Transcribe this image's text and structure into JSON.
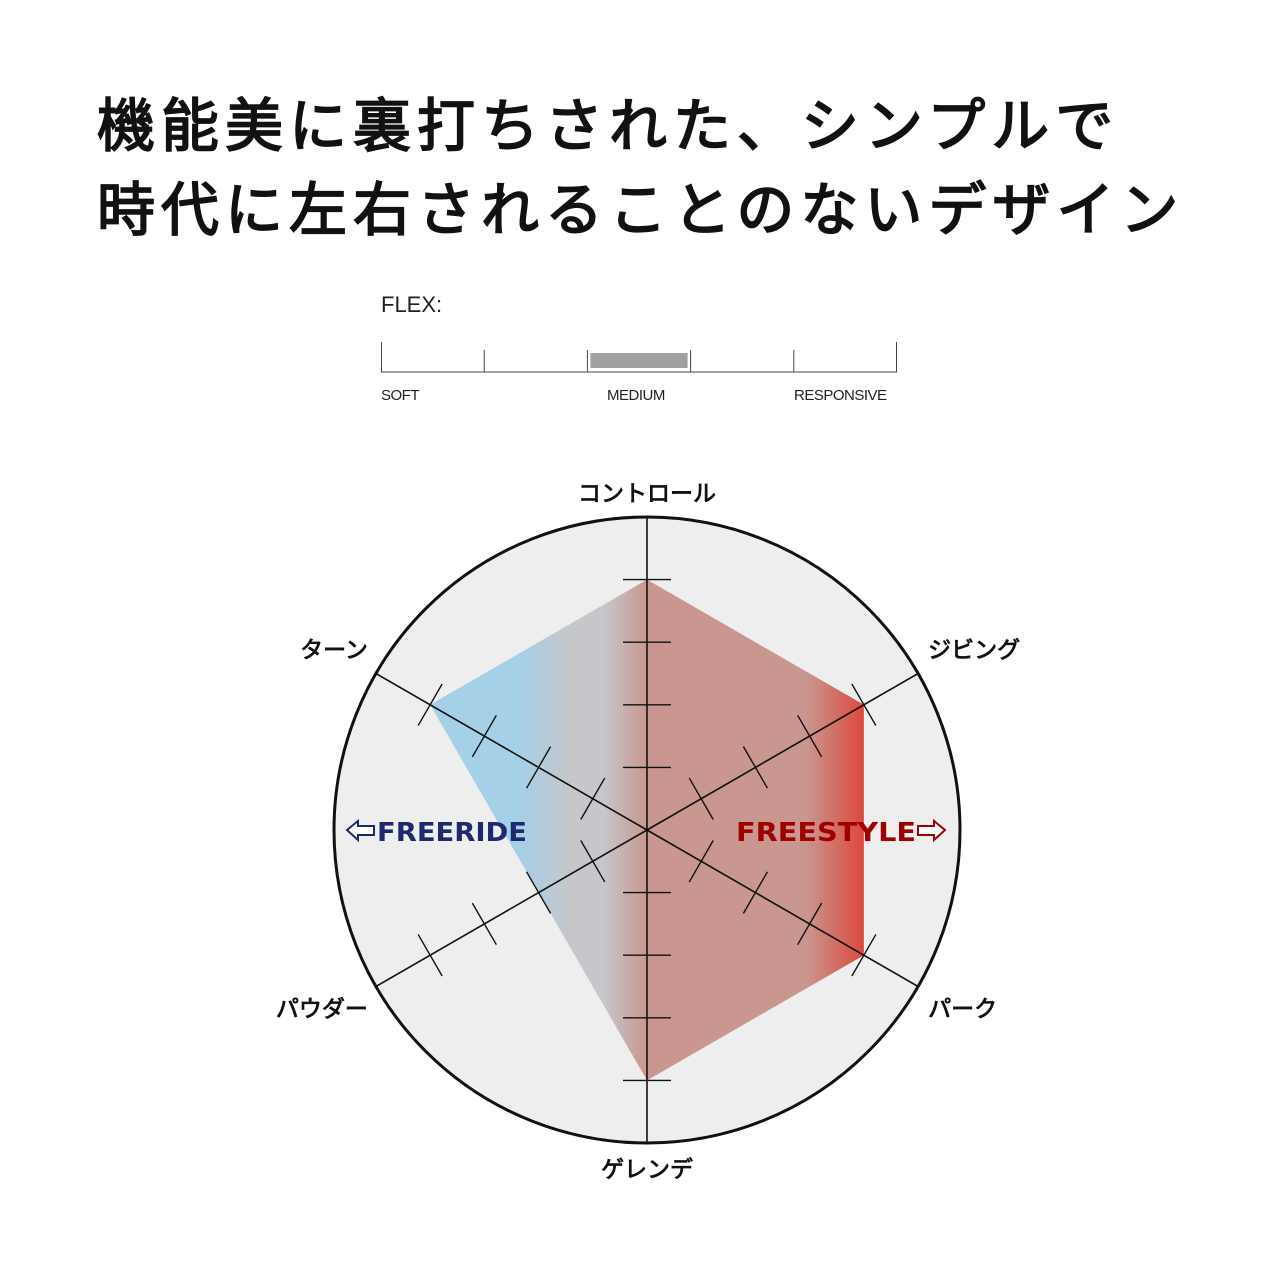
{
  "headline": {
    "line1": "機能美に裏打ちされた、シンプルで",
    "line2": "時代に左右されることのないデザイン"
  },
  "flex": {
    "label": "FLEX:",
    "segments": 5,
    "selected_segment": 3,
    "tick_labels": [
      "SOFT",
      "MEDIUM",
      "RESPONSIVE"
    ],
    "bar_color": "#a0a0a0"
  },
  "chart_data": {
    "type": "radar",
    "axes": [
      "コントロール",
      "ジビング",
      "パーク",
      "ゲレンデ",
      "パウダー",
      "ターン"
    ],
    "values": [
      4,
      4,
      4,
      4,
      2,
      4
    ],
    "rmax": 5,
    "ticks": [
      1,
      2,
      3,
      4
    ],
    "annotations": [
      {
        "text": "FREERIDE",
        "side": "left",
        "arrow": "left",
        "color": "#1f2a6e"
      },
      {
        "text": "FREESTYLE",
        "side": "right",
        "arrow": "right",
        "color": "#a00000"
      }
    ],
    "fill_gradient": [
      "#a5d0e8",
      "#c6c6cb",
      "#c9978f",
      "#dc4a40"
    ],
    "background": "#eeeeee"
  }
}
